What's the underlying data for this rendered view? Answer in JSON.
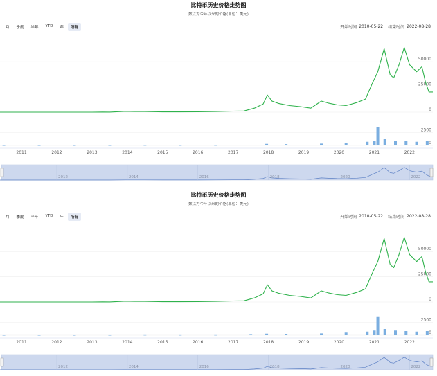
{
  "panels": [
    {
      "title": "比特币历史价格走势图",
      "subtitle": "数以为今年以来的价格(单位：美元)",
      "zoom_buttons": [
        "月",
        "季度",
        "半年",
        "YTD",
        "年",
        "所有"
      ],
      "zoom_active": "所有",
      "range_start_label": "开始时间",
      "range_start": "2010-05-22",
      "range_end_label": "结束时间",
      "range_end": "2022-08-28"
    },
    {
      "title": "比特币历史价格走势图",
      "subtitle": "数以为今年以来的价格(单位：美元)",
      "zoom_buttons": [
        "月",
        "季度",
        "半年",
        "YTD",
        "年",
        "所有"
      ],
      "zoom_active": "所有",
      "range_start_label": "开始时间",
      "range_start": "2010-05-22",
      "range_end_label": "结束时间",
      "range_end": "2022-08-28"
    }
  ],
  "colors": {
    "price_line": "#2fb24c",
    "volume_bar": "#7aaee0",
    "navigator_fill": "#cdd8ee",
    "navigator_line": "#5b7fc4"
  },
  "chart_data": {
    "type": "line",
    "price_series": {
      "x": [
        2010.39,
        2011.0,
        2011.5,
        2012.0,
        2012.5,
        2013.0,
        2013.3,
        2013.5,
        2013.95,
        2014.2,
        2014.5,
        2015.0,
        2015.5,
        2016.0,
        2016.5,
        2017.0,
        2017.3,
        2017.6,
        2017.85,
        2017.97,
        2018.1,
        2018.3,
        2018.6,
        2018.9,
        2019.2,
        2019.5,
        2019.7,
        2019.95,
        2020.2,
        2020.5,
        2020.75,
        2020.95,
        2021.1,
        2021.28,
        2021.45,
        2021.55,
        2021.7,
        2021.85,
        2022.0,
        2022.2,
        2022.35,
        2022.45,
        2022.55,
        2022.66
      ],
      "y": [
        0.1,
        1,
        10,
        5,
        7,
        13,
        150,
        100,
        800,
        600,
        600,
        300,
        250,
        400,
        650,
        1000,
        1200,
        4000,
        8000,
        17000,
        11000,
        8500,
        6500,
        5500,
        4000,
        11000,
        9000,
        7200,
        6500,
        9500,
        13000,
        29000,
        40000,
        63000,
        37000,
        34000,
        47000,
        64000,
        47000,
        40000,
        45000,
        30000,
        20000,
        20000
      ]
    },
    "volume_series": {
      "x": [
        2010.5,
        2011.5,
        2012.5,
        2013.5,
        2014.5,
        2015.5,
        2016.5,
        2017.5,
        2017.95,
        2018.5,
        2019.5,
        2020.2,
        2020.8,
        2021.0,
        2021.1,
        2021.3,
        2021.6,
        2021.9,
        2022.2,
        2022.5
      ],
      "y": [
        0,
        0,
        0,
        5,
        20,
        15,
        20,
        80,
        300,
        250,
        350,
        500,
        700,
        900,
        3500,
        1200,
        900,
        800,
        700,
        800
      ]
    },
    "x_ticks": [
      "2011",
      "2012",
      "2013",
      "2014",
      "2015",
      "2016",
      "2017",
      "2018",
      "2019",
      "2020",
      "2021",
      "2022"
    ],
    "y_ticks": [
      "0",
      "25000",
      "50000"
    ],
    "volume_ticks": [
      "0",
      "2500"
    ],
    "navigator_ticks": [
      "2012",
      "2014",
      "2016",
      "2018",
      "2020",
      "2022"
    ],
    "xlim": [
      2010.39,
      2022.66
    ],
    "ylim": [
      0,
      70000
    ],
    "volume_ylim": [
      0,
      4000
    ],
    "grid": true
  }
}
